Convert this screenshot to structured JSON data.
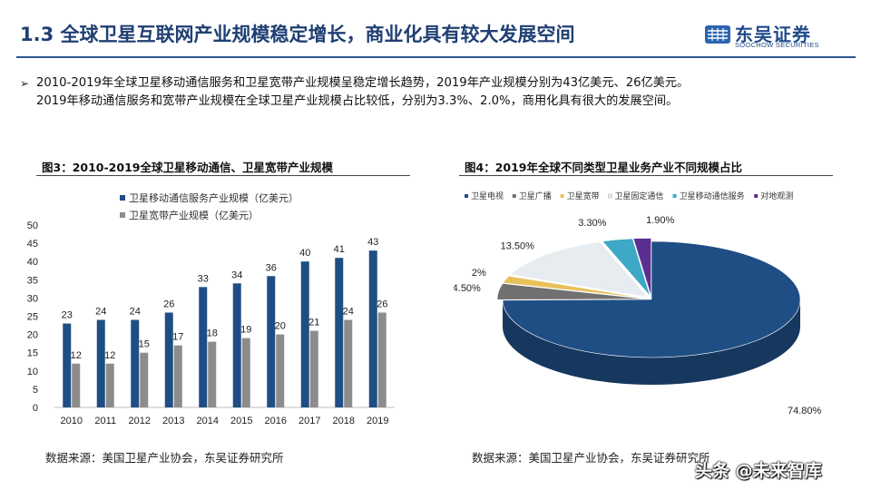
{
  "header": {
    "title": "1.3 全球卫星互联网产业规模稳定增长，商业化具有较大发展空间",
    "logo_cn": "东吴证券",
    "logo_en": "SOOCHOW SECURITIES",
    "accent": "#1f3f73"
  },
  "summary": {
    "arrow": "➢",
    "line1": "2010-2019年全球卫星移动通信服务和卫星宽带产业规模呈稳定增长趋势，2019年产业规模分别为43亿美元、26亿美元。",
    "line2": "2019年移动通信服务和宽带产业规模在全球卫星产业规模占比较低，分别为3.3%、2.0%，商用化具有很大的发展空间。"
  },
  "figure3": {
    "title": "图3：2010-2019全球卫星移动通信、卫星宽带产业规模",
    "source": "数据来源：美国卫星产业协会，东吴证券研究所"
  },
  "figure4": {
    "title": "图4：2019年全球不同类型卫星业务产业不同规模占比",
    "source": "数据来源：美国卫星产业协会，东吴证券研究所"
  },
  "watermark": "头条 @未来智库",
  "chart_data": [
    {
      "type": "bar",
      "categories": [
        "2010",
        "2011",
        "2012",
        "2013",
        "2014",
        "2015",
        "2016",
        "2017",
        "2018",
        "2019"
      ],
      "series": [
        {
          "name": "卫星移动通信服务产业规模（亿美元）",
          "color": "#1f4e84",
          "values": [
            23,
            24,
            24,
            26,
            33,
            34,
            36,
            40,
            41,
            43
          ]
        },
        {
          "name": "卫星宽带产业规模（亿美元）",
          "color": "#8c8c8c",
          "values": [
            12,
            12,
            15,
            17,
            18,
            19,
            20,
            21,
            24,
            26
          ]
        }
      ],
      "yticks": [
        "0",
        "5",
        "10",
        "15",
        "20",
        "25",
        "30",
        "35",
        "40",
        "45",
        "50"
      ],
      "ylim": [
        0,
        50
      ],
      "legend": "top-left",
      "grid": false
    },
    {
      "type": "pie",
      "style": "3d",
      "legend": "top",
      "slices": [
        {
          "name": "卫星电视",
          "value": 74.8,
          "label": "74.80%",
          "color": "#1f4e84"
        },
        {
          "name": "卫星广播",
          "value": 4.5,
          "label": "4.50%",
          "color": "#707070"
        },
        {
          "name": "卫星宽带",
          "value": 2.0,
          "label": "2%",
          "color": "#e8c15a"
        },
        {
          "name": "卫星固定通信",
          "value": 13.5,
          "label": "13.50%",
          "color": "#e6ecef"
        },
        {
          "name": "卫星移动通信服务",
          "value": 3.3,
          "label": "3.30%",
          "color": "#3ea8c7"
        },
        {
          "name": "对地观测",
          "value": 1.9,
          "label": "1.90%",
          "color": "#5b2f8f"
        }
      ]
    }
  ]
}
